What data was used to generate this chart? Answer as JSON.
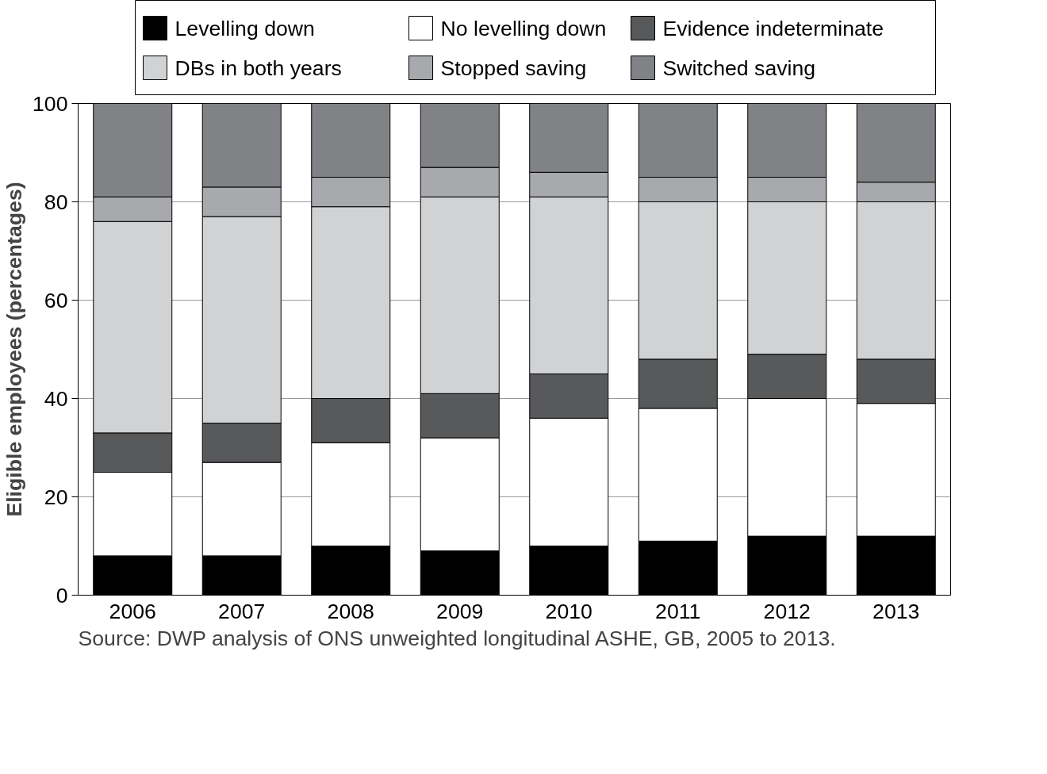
{
  "chart_data": {
    "type": "bar",
    "stacked": true,
    "ylabel": "Eligible employees (percentages)",
    "categories": [
      "2006",
      "2007",
      "2008",
      "2009",
      "2010",
      "2011",
      "2012",
      "2013"
    ],
    "series": [
      {
        "name": "Levelling down",
        "color": "#000000",
        "values": [
          8,
          8,
          10,
          9,
          10,
          11,
          12,
          12
        ]
      },
      {
        "name": "No levelling down",
        "color": "#ffffff",
        "values": [
          17,
          19,
          21,
          23,
          26,
          27,
          28,
          27
        ]
      },
      {
        "name": "Evidence indeterminate",
        "color": "#58595b",
        "values": [
          8,
          8,
          9,
          9,
          9,
          10,
          9,
          9
        ]
      },
      {
        "name": "DBs in both years",
        "color": "#d1d2d4",
        "values": [
          43,
          42,
          39,
          40,
          36,
          32,
          31,
          32
        ]
      },
      {
        "name": "Stopped saving",
        "color": "#a7a9ac",
        "values": [
          5,
          6,
          6,
          6,
          5,
          5,
          5,
          4
        ]
      },
      {
        "name": "Switched saving",
        "color": "#808285",
        "values": [
          19,
          17,
          15,
          13,
          14,
          15,
          15,
          16
        ]
      }
    ],
    "ylim": [
      0,
      100
    ],
    "yticks": [
      0,
      20,
      40,
      60,
      80,
      100
    ],
    "grid": "y",
    "legend": "top",
    "annotations": [
      "Source: DWP analysis of ONS unweighted longitudinal ASHE, GB, 2005 to 2013."
    ]
  }
}
